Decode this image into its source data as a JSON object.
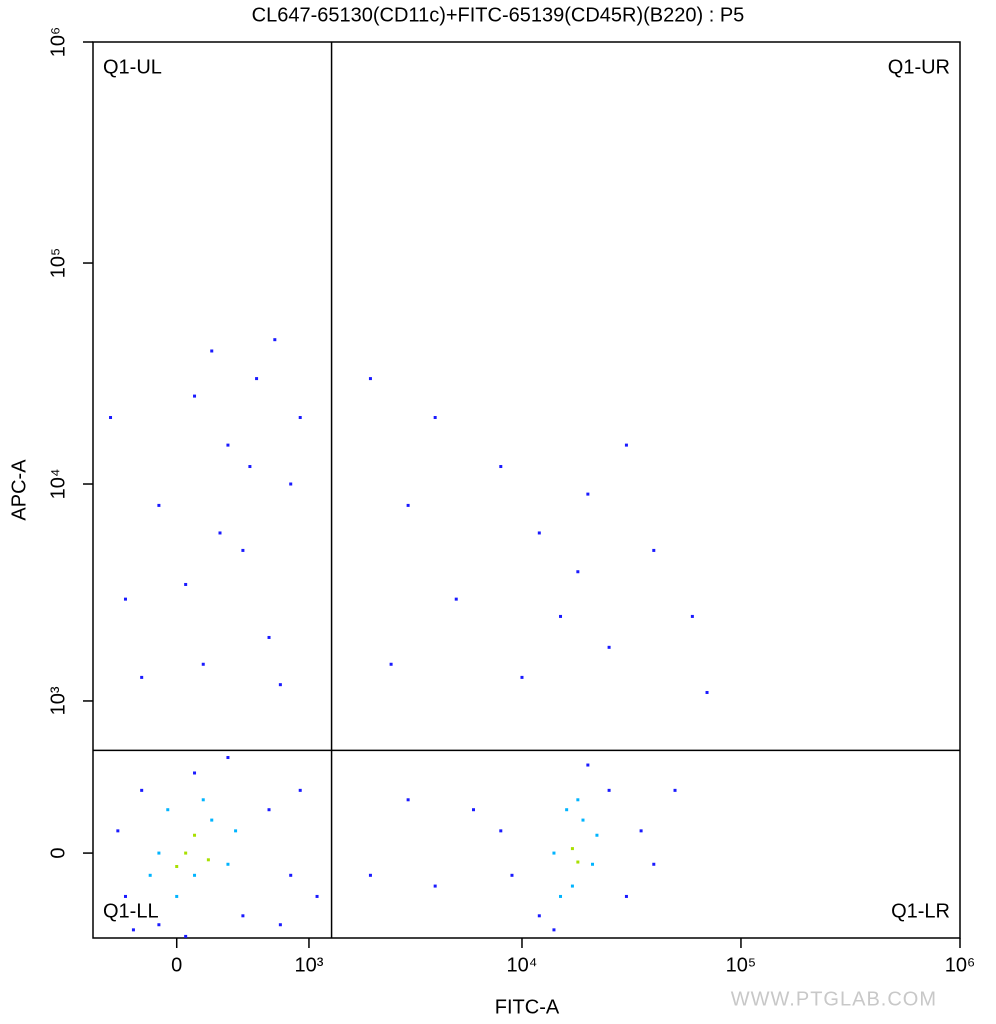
{
  "chart_data": {
    "type": "scatter",
    "title": "CL647-65130(CD11c)+FITC-65139(CD45R)(B220) : P5",
    "x_label": "FITC-A",
    "y_label": "APC-A",
    "scale": "biexponential",
    "xlim": [
      -530,
      1000000
    ],
    "ylim": [
      -430,
      1000000
    ],
    "xticks": [
      0,
      {
        "value": 1000,
        "label": "10³"
      },
      {
        "value": 10000,
        "label": "10⁴"
      },
      {
        "value": 100000,
        "label": "10⁵"
      },
      {
        "value": 1000000,
        "label": "10⁶"
      }
    ],
    "yticks": [
      0,
      {
        "value": 1000,
        "label": "10³"
      },
      {
        "value": 10000,
        "label": "10⁴"
      },
      {
        "value": 100000,
        "label": "10⁵"
      },
      {
        "value": 1000000,
        "label": "10⁶"
      }
    ],
    "gates": {
      "x": 1300,
      "y": 550
    },
    "quadrant_labels": {
      "UL": "Q1-UL",
      "UR": "Q1-UR",
      "LL": "Q1-LL",
      "LR": "Q1-LR"
    },
    "series": [
      {
        "color": "#1a1aff",
        "x": [
          -300,
          -200,
          -100,
          100,
          400,
          600,
          800,
          -350,
          300,
          900,
          1100,
          -250,
          50,
          700,
          8000,
          12000,
          25000,
          30000,
          9000,
          20000,
          35000,
          14000,
          6000,
          40000,
          4000,
          3000,
          2000,
          50000,
          -400,
          -300,
          -100,
          100,
          200,
          300,
          400,
          500,
          600,
          800,
          700,
          150,
          -200,
          900,
          250,
          450,
          50,
          650,
          2000,
          3000,
          5000,
          2500,
          8000,
          12000,
          15000,
          20000,
          25000,
          30000,
          18000,
          40000,
          10000,
          4000,
          60000,
          70000
        ],
        "y": [
          -200,
          300,
          -350,
          400,
          -300,
          200,
          -100,
          100,
          500,
          300,
          -200,
          -380,
          -420,
          -350,
          100,
          -300,
          300,
          -200,
          -100,
          450,
          100,
          -380,
          200,
          -50,
          -150,
          250,
          -100,
          300,
          20000,
          3000,
          8000,
          25000,
          40000,
          15000,
          5000,
          30000,
          2000,
          10000,
          1200,
          1500,
          1300,
          20000,
          6000,
          12000,
          3500,
          45000,
          30000,
          8000,
          3000,
          1500,
          12000,
          6000,
          2500,
          9000,
          1800,
          15000,
          4000,
          5000,
          1300,
          20000,
          2500,
          1100
        ]
      },
      {
        "color": "#00b4ff",
        "x": [
          -100,
          100,
          200,
          -50,
          300,
          0,
          150,
          350,
          -150,
          14000,
          17000,
          19000,
          16000,
          21000,
          15000,
          18000,
          22000
        ],
        "y": [
          0,
          -100,
          150,
          200,
          -50,
          -200,
          250,
          100,
          -100,
          0,
          -150,
          150,
          200,
          -50,
          -200,
          250,
          80
        ]
      },
      {
        "color": "#a8e000",
        "x": [
          50,
          100,
          0,
          180,
          17000,
          18000
        ],
        "y": [
          0,
          80,
          -60,
          -30,
          20,
          -40
        ]
      }
    ]
  },
  "watermark": "WWW.PTGLAB.COM"
}
